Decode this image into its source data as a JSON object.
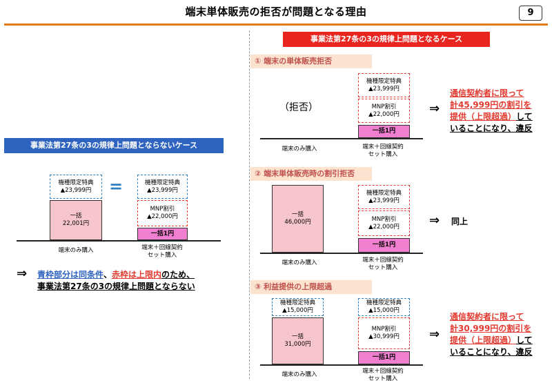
{
  "title": "端末単体販売の拒否が問題となる理由",
  "page_number": "9",
  "left": {
    "banner": "事業法第27条の3の規律上問題とならないケース",
    "box_model_limited": "機種限定特典\n▲23,999円",
    "box_lump": "一括\n22,001円",
    "equal": "=",
    "box_model_limited_set": "機種限定特典\n▲23,999円",
    "box_mnp": "MNP割引\n▲22,000円",
    "box_one_yen": "一括1円",
    "caption_device_only": "端末のみ購入",
    "caption_set": "端末＋回線契約\nセット購入",
    "conclusion_arrow": "⇒",
    "conclusion_line1_a": "青枠部分は同条件",
    "conclusion_line1_b": "、",
    "conclusion_line1_c": "赤枠は上限内",
    "conclusion_line1_d": "のため、",
    "conclusion_line2": "事業法第27条の3の規律上問題とならない"
  },
  "right": {
    "banner": "事業法第27条の3の規律上問題となるケース",
    "case1": {
      "heading": "①  端末の単体販売拒否",
      "kyohi": "（拒否）",
      "box_model_limited": "機種限定特典\n▲23,999円",
      "box_mnp": "MNP割引\n▲22,000円",
      "box_one_yen": "一括1円",
      "caption_device_only": "端末のみ購入",
      "caption_set": "端末＋回線契約\nセット購入",
      "arrow": "⇒",
      "result_red_1": "通信契約者に限って",
      "result_red_2": "計45,999円の割引を",
      "result_red_3": "提供（上限超過）",
      "result_black_3": "して",
      "result_black_4": "いることになり、違反"
    },
    "case2": {
      "heading": "②  端末単体販売時の割引拒否",
      "box_lump": "一括\n46,000円",
      "box_model_limited": "機種限定特典\n▲23,999円",
      "box_mnp": "MNP割引\n▲22,000円",
      "box_one_yen": "一括1円",
      "caption_device_only": "端末のみ購入",
      "caption_set": "端末＋回線契約\nセット購入",
      "arrow": "⇒",
      "result": "同上"
    },
    "case3": {
      "heading": "③  利益提供の上限超過",
      "box_model_limited_left": "機種限定特典\n▲15,000円",
      "box_lump": "一括\n31,000円",
      "box_model_limited_right": "機種限定特典\n▲15,000円",
      "box_mnp": "MNP割引\n▲30,999円",
      "box_one_yen": "一括1円",
      "caption_device_only": "端末のみ購入",
      "caption_set": "端末＋回線契約\nセット購入",
      "arrow": "⇒",
      "result_red_1": "通信契約者に限って",
      "result_red_2": "計30,999円の割引を",
      "result_red_3": "提供（上限超過）",
      "result_black_3": "して",
      "result_black_4": "いることになり、違反"
    }
  },
  "colors": {
    "accent_orange": "#e07b1a",
    "banner_blue": "#2f63c0",
    "banner_red": "#e8261f",
    "section_heading_bg": "#fbe3cf",
    "pink_fill": "#f7c6cc",
    "magenta_fill": "#f07fcf"
  }
}
